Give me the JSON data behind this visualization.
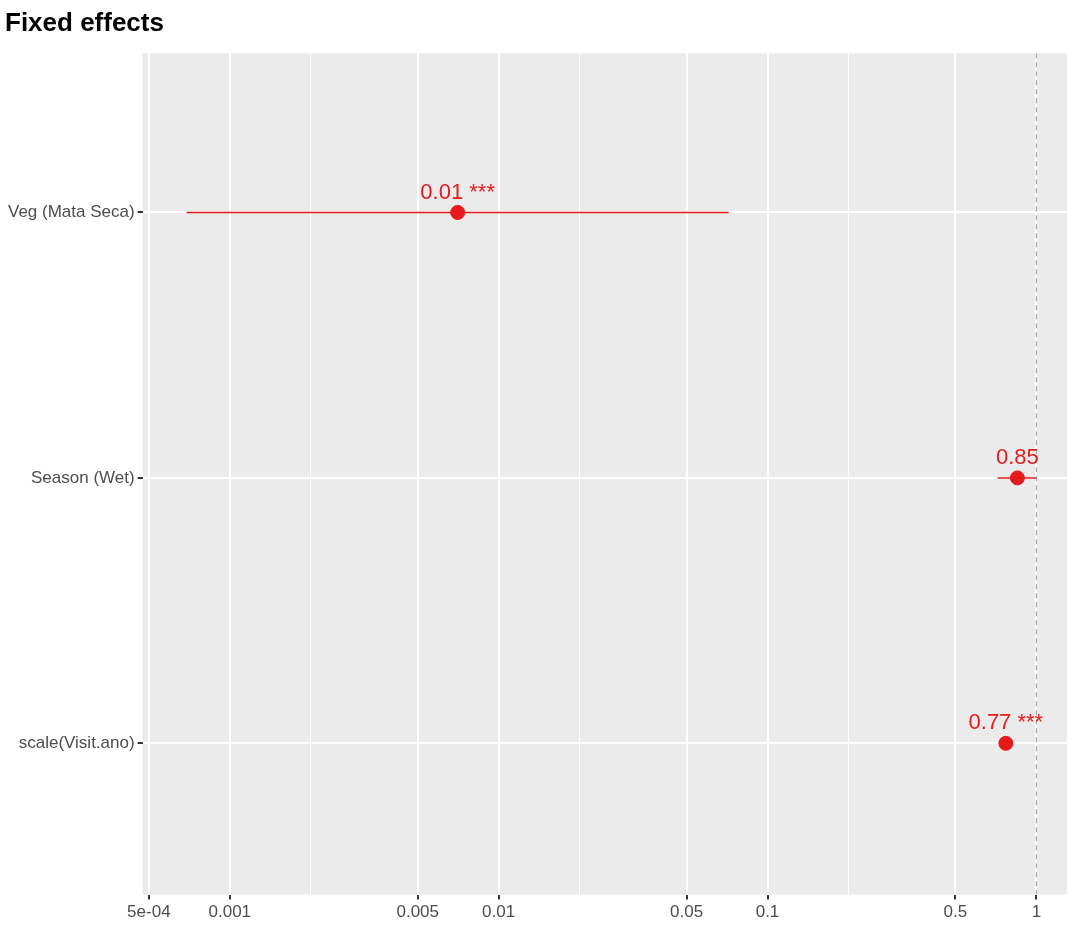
{
  "chart_data": {
    "type": "scatter",
    "title": "Fixed effects",
    "orientation": "horizontal",
    "categories": [
      "Veg (Mata Seca)",
      "Season (Wet)",
      "scale(Visit.ano)"
    ],
    "series": [
      {
        "color": "#e41a1c",
        "values": [
          0.00704,
          0.85,
          0.77
        ],
        "errors": [
          [
            0.00069,
            0.0717
          ],
          [
            0.717,
            1.0
          ],
          null
        ],
        "value_labels": [
          "0.01 ***",
          "0.85",
          "0.77 ***"
        ]
      }
    ],
    "log": "x",
    "xlim": [
      0.000474,
      1.3
    ],
    "xticks": [
      {
        "value": 0.0005,
        "label": "5e-04"
      },
      0.001,
      {
        "value": 0.002,
        "label": null
      },
      0.005,
      0.01,
      {
        "value": 0.02,
        "label": null
      },
      0.05,
      0.1,
      {
        "value": 0.2,
        "label": null
      },
      0.5,
      1
    ],
    "ref_lines": [
      {
        "axis": "x",
        "value": 1,
        "color": "#a6a6a6",
        "line_style": "dashed"
      }
    ],
    "grid": true,
    "marker": "circle",
    "legend": false
  }
}
